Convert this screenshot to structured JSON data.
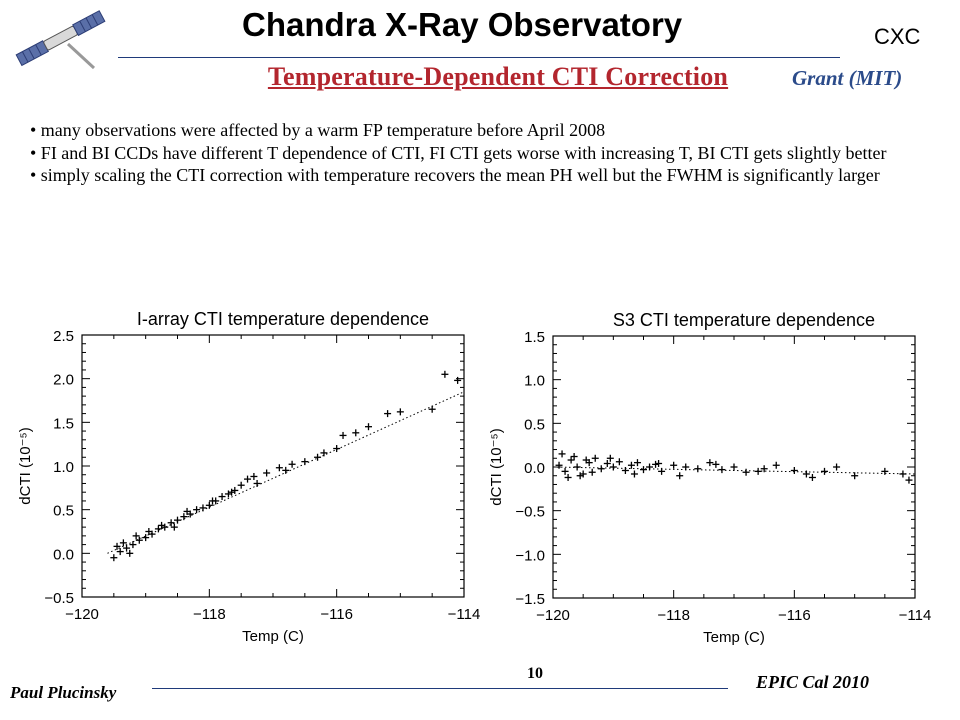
{
  "header": {
    "title": "Chandra X-Ray Observatory",
    "org": "CXC",
    "subtitle": "Temperature-Dependent  CTI Correction",
    "author": "Grant (MIT)"
  },
  "bullets": [
    "• many observations were affected by a warm FP temperature before April 2008",
    "• FI and BI CCDs have different T dependence of CTI, FI CTI gets worse with increasing T, BI CTI gets slightly better",
    "• simply scaling the CTI correction with temperature recovers the mean PH well but the FWHM is significantly larger"
  ],
  "footer": {
    "left": "Paul Plucinsky",
    "page": "10",
    "right": "EPIC Cal 2010"
  },
  "colors": {
    "subtitle": "#b3262e",
    "author": "#2b4b8a",
    "rule": "#1f3a7a"
  },
  "logo_icon": "satellite-icon",
  "chart_data": [
    {
      "type": "scatter",
      "title": "I-array CTI temperature dependence",
      "xlabel": "Temp (C)",
      "ylabel": "dCTI (10⁻⁵)",
      "xlim": [
        -120,
        -114
      ],
      "ylim": [
        -0.5,
        2.5
      ],
      "xticks": [
        "-120",
        "-118",
        "-116",
        "-114"
      ],
      "yticks": [
        "-0.5",
        "0.0",
        "0.5",
        "1.0",
        "1.5",
        "2.0",
        "2.5"
      ],
      "ytick_values": [
        -0.5,
        0.0,
        0.5,
        1.0,
        1.5,
        2.0,
        2.5
      ],
      "xtick_values": [
        -120,
        -118,
        -116,
        -114
      ],
      "fit_line": {
        "x": [
          -119.6,
          -114
        ],
        "y": [
          0.0,
          1.85
        ],
        "style": "dotted"
      },
      "series": [
        {
          "marker": "+",
          "x": [
            -119.5,
            -119.4,
            -119.3,
            -119.2,
            -119.1,
            -119.0,
            -118.9,
            -118.8,
            -118.7,
            -118.6,
            -118.5,
            -118.4,
            -118.3,
            -118.2,
            -118.1,
            -118.0,
            -117.9,
            -117.8,
            -117.7,
            -117.6,
            -117.5,
            -117.4,
            -117.3,
            -117.1,
            -116.9,
            -116.7,
            -116.5,
            -116.3,
            -116.0,
            -115.7,
            -115.5,
            -115.2,
            -115.0,
            -114.5,
            -114.3,
            -114.1,
            -119.45,
            -119.35,
            -119.25,
            -119.15,
            -118.95,
            -118.75,
            -118.55,
            -118.35,
            -117.95,
            -117.65,
            -117.25,
            -116.8,
            -116.2,
            -115.9
          ],
          "y": [
            -0.05,
            0.02,
            0.06,
            0.1,
            0.15,
            0.18,
            0.22,
            0.28,
            0.3,
            0.35,
            0.38,
            0.42,
            0.45,
            0.5,
            0.52,
            0.55,
            0.6,
            0.65,
            0.68,
            0.72,
            0.78,
            0.85,
            0.88,
            0.92,
            0.98,
            1.02,
            1.05,
            1.1,
            1.2,
            1.38,
            1.45,
            1.6,
            1.62,
            1.65,
            2.05,
            1.98,
            0.08,
            0.12,
            0.0,
            0.2,
            0.25,
            0.32,
            0.3,
            0.48,
            0.6,
            0.7,
            0.8,
            0.95,
            1.15,
            1.35
          ]
        }
      ]
    },
    {
      "type": "scatter",
      "title": "S3 CTI temperature dependence",
      "xlabel": "Temp (C)",
      "ylabel": "dCTI (10⁻⁵)",
      "xlim": [
        -120,
        -114
      ],
      "ylim": [
        -1.5,
        1.5
      ],
      "xticks": [
        "-120",
        "-118",
        "-116",
        "-114"
      ],
      "yticks": [
        "-1.5",
        "-1.0",
        "-0.5",
        "0.0",
        "0.5",
        "1.0",
        "1.5"
      ],
      "ytick_values": [
        -1.5,
        -1.0,
        -0.5,
        0.0,
        0.5,
        1.0,
        1.5
      ],
      "xtick_values": [
        -120,
        -118,
        -116,
        -114
      ],
      "fit_line": {
        "x": [
          -120,
          -114
        ],
        "y": [
          0.0,
          -0.08
        ],
        "style": "dotted"
      },
      "series": [
        {
          "marker": "+",
          "x": [
            -119.9,
            -119.8,
            -119.7,
            -119.6,
            -119.5,
            -119.4,
            -119.3,
            -119.2,
            -119.1,
            -119.0,
            -118.9,
            -118.8,
            -118.7,
            -118.6,
            -118.5,
            -118.4,
            -118.3,
            -118.2,
            -118.0,
            -117.8,
            -117.6,
            -117.4,
            -117.2,
            -117.0,
            -116.8,
            -116.5,
            -116.3,
            -116.0,
            -115.8,
            -115.5,
            -115.3,
            -115.0,
            -114.5,
            -114.2,
            -114.1,
            -119.85,
            -119.75,
            -119.65,
            -119.55,
            -119.45,
            -119.35,
            -119.05,
            -118.65,
            -118.25,
            -117.9,
            -117.3,
            -116.6,
            -115.7
          ],
          "y": [
            0.02,
            -0.05,
            0.08,
            0.0,
            -0.08,
            0.05,
            0.1,
            -0.02,
            0.04,
            0.0,
            0.06,
            -0.04,
            0.02,
            0.05,
            -0.03,
            0.0,
            0.03,
            -0.05,
            0.02,
            0.0,
            -0.02,
            0.05,
            -0.03,
            0.0,
            -0.06,
            -0.02,
            0.02,
            -0.04,
            -0.08,
            -0.05,
            0.0,
            -0.1,
            -0.05,
            -0.08,
            -0.15,
            0.15,
            -0.12,
            0.12,
            -0.1,
            0.08,
            -0.06,
            0.1,
            -0.08,
            0.04,
            -0.1,
            0.03,
            -0.05,
            -0.12
          ]
        }
      ]
    }
  ]
}
